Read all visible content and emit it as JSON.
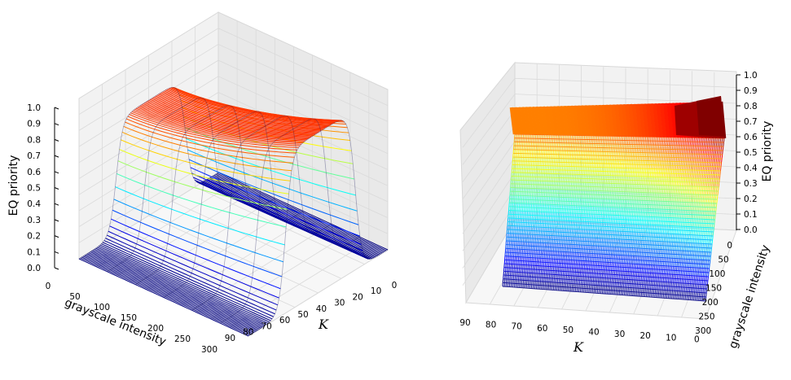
{
  "chart_data": [
    {
      "type": "surface3d",
      "panel": "left",
      "title": "",
      "axes": {
        "x": {
          "label": "grayscale intensity",
          "ticks": [
            "0",
            "50",
            "100",
            "150",
            "200",
            "250",
            "300"
          ],
          "range": [
            0,
            300
          ]
        },
        "y": {
          "label": "K",
          "ticks": [
            "0",
            "10",
            "20",
            "30",
            "40",
            "50",
            "60",
            "70",
            "80",
            "90"
          ],
          "range": [
            0,
            90
          ]
        },
        "z": {
          "label": "EQ priority",
          "ticks": [
            "0.0",
            "0.1",
            "0.2",
            "0.3",
            "0.4",
            "0.5",
            "0.6",
            "0.7",
            "0.8",
            "0.9",
            "1.0"
          ],
          "range": [
            0,
            1
          ]
        }
      },
      "colormap": "jet",
      "surface": {
        "description": "plateau between grayscale ~70 and ~220, rising with K",
        "plateau_start": 70,
        "plateau_end": 220,
        "z_at_K0": 0.72,
        "z_at_K90": 1.0
      },
      "grid": true
    },
    {
      "type": "surface3d",
      "panel": "right",
      "title": "",
      "axes": {
        "x": {
          "label": "K",
          "ticks": [
            "90",
            "80",
            "70",
            "60",
            "50",
            "40",
            "30",
            "20",
            "10",
            "0"
          ],
          "range": [
            0,
            90
          ]
        },
        "y": {
          "label": "grayscale intensity",
          "ticks": [
            "0",
            "50",
            "100",
            "150",
            "200",
            "250",
            "300"
          ],
          "range": [
            0,
            300
          ]
        },
        "z": {
          "label": "EQ priority",
          "ticks": [
            "0.0",
            "0.1",
            "0.2",
            "0.3",
            "0.4",
            "0.5",
            "0.6",
            "0.7",
            "0.8",
            "0.9",
            "1.0"
          ],
          "range": [
            0,
            1
          ]
        }
      },
      "colormap": "jet",
      "grid": true
    }
  ]
}
